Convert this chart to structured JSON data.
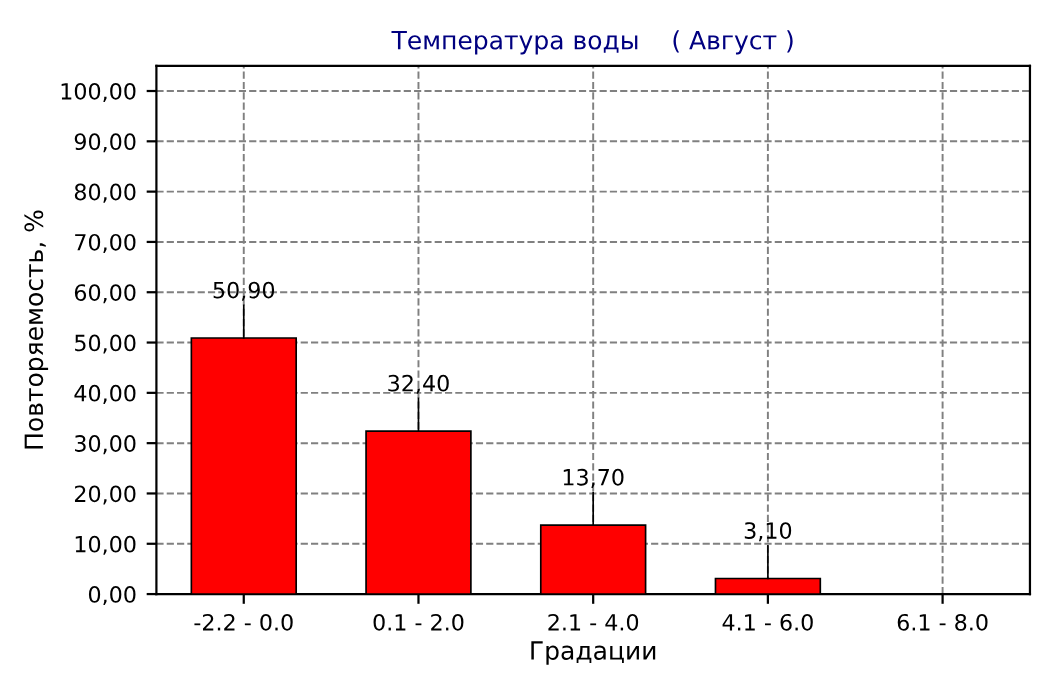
{
  "chart_data": {
    "type": "bar",
    "title": "Температура воды    ( Август )",
    "xlabel": "Градации",
    "ylabel": "Повторяемость, %",
    "categories": [
      "-2.2 - 0.0",
      "0.1 - 2.0",
      "2.1 - 4.0",
      "4.1 - 6.0",
      "6.1 - 8.0"
    ],
    "values": [
      50.9,
      32.4,
      13.7,
      3.1,
      null
    ],
    "value_labels": [
      "50,90",
      "32,40",
      "13,70",
      "3,10",
      null
    ],
    "color": "#ff0000",
    "ylim": [
      0,
      105
    ],
    "yticks": [
      {
        "value": 0,
        "label": "0,00"
      },
      {
        "value": 10,
        "label": "10,00"
      },
      {
        "value": 20,
        "label": "20,00"
      },
      {
        "value": 30,
        "label": "30,00"
      },
      {
        "value": 40,
        "label": "40,00"
      },
      {
        "value": 50,
        "label": "50,00"
      },
      {
        "value": 60,
        "label": "60,00"
      },
      {
        "value": 70,
        "label": "70,00"
      },
      {
        "value": 80,
        "label": "80,00"
      },
      {
        "value": 90,
        "label": "90,00"
      },
      {
        "value": 100,
        "label": "100,00"
      }
    ],
    "grid": true,
    "line_style": "dashed"
  }
}
